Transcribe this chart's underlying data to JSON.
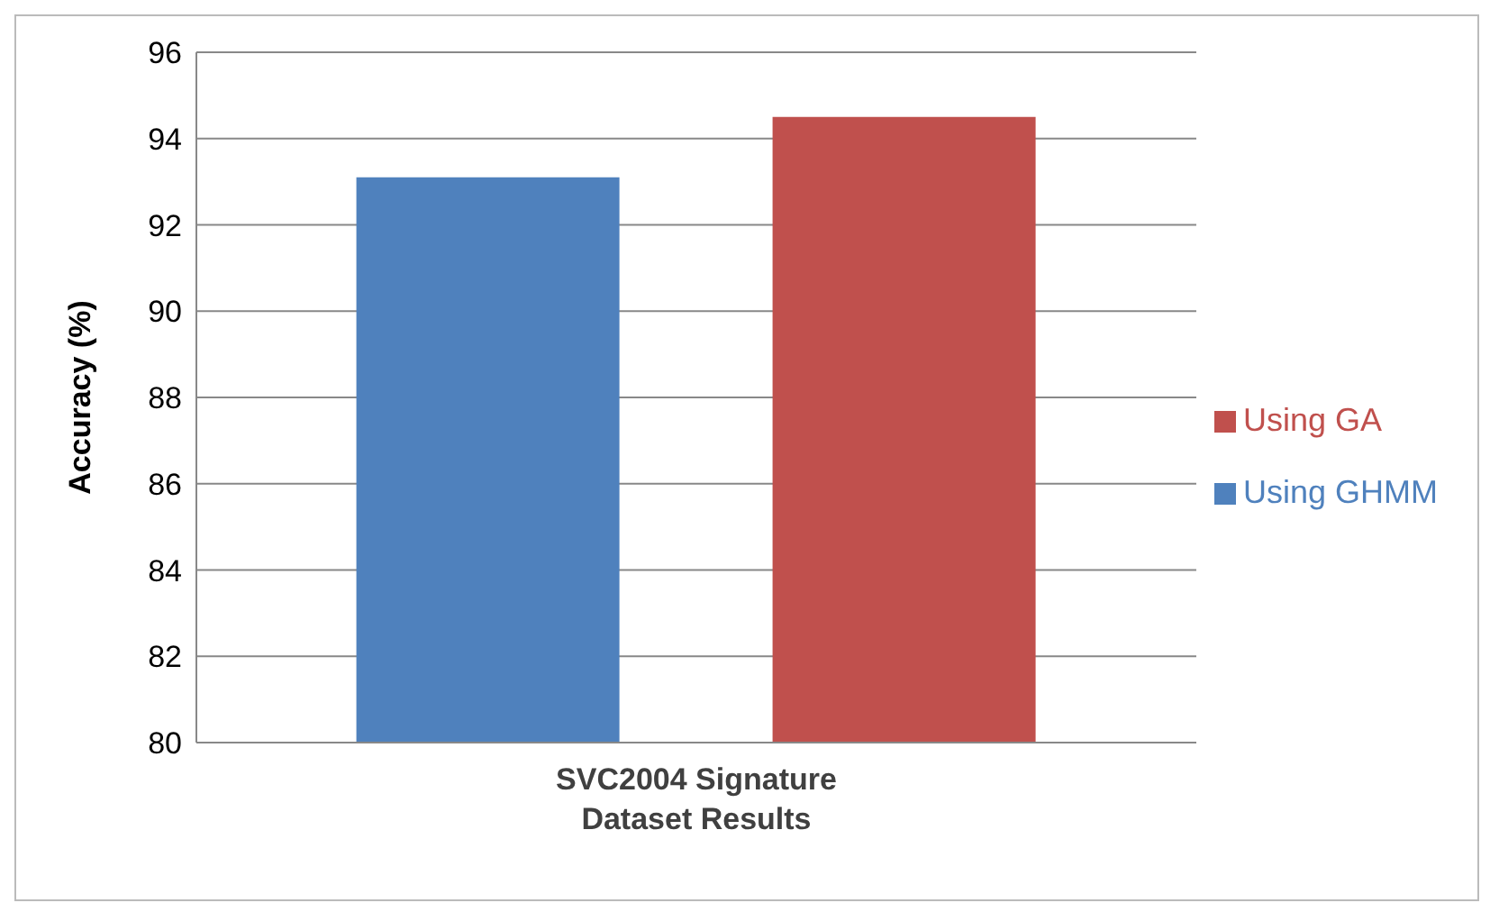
{
  "chart_data": {
    "type": "bar",
    "categories": [
      "SVC2004 Signature Dataset Results"
    ],
    "series": [
      {
        "name": "Using GHMM",
        "color": "#4f81bd",
        "values": [
          93.1
        ]
      },
      {
        "name": "Using GA",
        "color": "#c0504d",
        "values": [
          94.5
        ]
      }
    ],
    "ylabel": "Accuracy (%)",
    "ylim": [
      80,
      96
    ],
    "yticks": [
      80,
      82,
      84,
      86,
      88,
      90,
      92,
      94,
      96
    ],
    "grid": "y",
    "legend": "right"
  }
}
